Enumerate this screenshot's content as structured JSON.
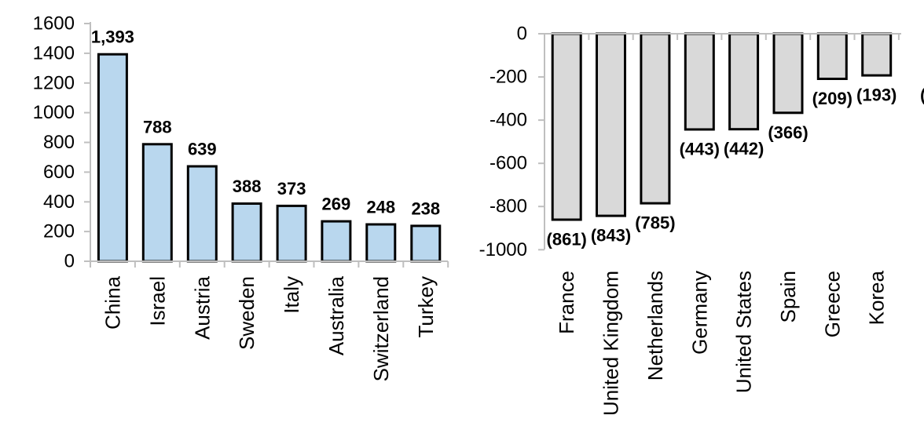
{
  "figure": {
    "background": "#ffffff",
    "axis_color": "#BFBFBF",
    "text_color": "#000000"
  },
  "chart_data": [
    {
      "type": "bar",
      "name": "positive-balance-chart",
      "title": "",
      "xlabel": "",
      "ylabel": "",
      "categories": [
        "China",
        "Israel",
        "Austria",
        "Sweden",
        "Italy",
        "Australia",
        "Switzerland",
        "Turkey"
      ],
      "values": [
        1393,
        788,
        639,
        388,
        373,
        269,
        248,
        238
      ],
      "data_labels": [
        "1,393",
        "788",
        "639",
        "388",
        "373",
        "269",
        "248",
        "238"
      ],
      "ylim": [
        0,
        1600
      ],
      "yticks": [
        0,
        200,
        400,
        600,
        800,
        1000,
        1200,
        1400,
        1600
      ],
      "ytick_labels": [
        "0",
        "200",
        "400",
        "600",
        "800",
        "1000",
        "1200",
        "1400",
        "1600"
      ],
      "grid": false,
      "legend": null,
      "bar_fill": "#B9D7EE",
      "bar_stroke": "#000000",
      "category_label_rotation": -90
    },
    {
      "type": "bar",
      "name": "negative-balance-chart",
      "title": "",
      "xlabel": "",
      "ylabel": "",
      "categories": [
        "France",
        "United Kingdom",
        "Netherlands",
        "Germany",
        "United States",
        "Spain",
        "Greece",
        "Korea"
      ],
      "values": [
        -861,
        -843,
        -785,
        -443,
        -442,
        -366,
        -209,
        -193
      ],
      "data_labels": [
        "(861)",
        "(843)",
        "(785)",
        "(443)",
        "(442)",
        "(366)",
        "(209)",
        "(193)"
      ],
      "ylim": [
        -1000,
        0
      ],
      "yticks": [
        0,
        -200,
        -400,
        -600,
        -800,
        -1000
      ],
      "ytick_labels": [
        "0",
        "-200",
        "-400",
        "-600",
        "-800",
        "-1000"
      ],
      "grid": false,
      "legend": null,
      "bar_fill": "#D9D9D9",
      "bar_stroke": "#000000",
      "category_label_rotation": -90,
      "clipped_label_fragment": "("
    }
  ]
}
